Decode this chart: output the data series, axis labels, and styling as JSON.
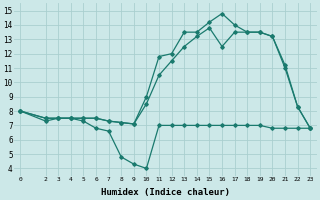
{
  "xlabel": "Humidex (Indice chaleur)",
  "background_color": "#cce8e8",
  "grid_color": "#aacfcf",
  "line_color": "#1a7a6e",
  "xlim": [
    -0.5,
    23.5
  ],
  "ylim": [
    3.5,
    15.5
  ],
  "xticks": [
    0,
    2,
    3,
    4,
    5,
    6,
    7,
    8,
    9,
    10,
    11,
    12,
    13,
    14,
    15,
    16,
    17,
    18,
    19,
    20,
    21,
    22,
    23
  ],
  "yticks": [
    4,
    5,
    6,
    7,
    8,
    9,
    10,
    11,
    12,
    13,
    14,
    15
  ],
  "line1_x": [
    0,
    2,
    3,
    4,
    5,
    6,
    7,
    8,
    9,
    10,
    11,
    12,
    13,
    14,
    15,
    16,
    17,
    18,
    19,
    20,
    21,
    22,
    23
  ],
  "line1_y": [
    8.0,
    7.3,
    7.5,
    7.5,
    7.3,
    6.8,
    6.6,
    4.8,
    4.3,
    4.0,
    7.0,
    7.0,
    7.0,
    7.0,
    7.0,
    7.0,
    7.0,
    7.0,
    7.0,
    6.8,
    6.8,
    6.8,
    6.8
  ],
  "line2_x": [
    0,
    2,
    3,
    4,
    5,
    6,
    7,
    8,
    9,
    10,
    11,
    12,
    13,
    14,
    15,
    16,
    17,
    18,
    19,
    20,
    21,
    22,
    23
  ],
  "line2_y": [
    8.0,
    7.5,
    7.5,
    7.5,
    7.5,
    7.5,
    7.3,
    7.2,
    7.1,
    9.0,
    11.8,
    12.0,
    13.5,
    13.5,
    14.2,
    14.8,
    14.0,
    13.5,
    13.5,
    13.2,
    11.0,
    8.3,
    6.8
  ],
  "line3_x": [
    0,
    2,
    3,
    4,
    5,
    6,
    7,
    8,
    9,
    10,
    11,
    12,
    13,
    14,
    15,
    16,
    17,
    18,
    19,
    20,
    21,
    22,
    23
  ],
  "line3_y": [
    8.0,
    7.5,
    7.5,
    7.5,
    7.5,
    7.5,
    7.3,
    7.2,
    7.1,
    8.5,
    10.5,
    11.5,
    12.5,
    13.2,
    13.8,
    12.5,
    13.5,
    13.5,
    13.5,
    13.2,
    11.2,
    8.3,
    6.8
  ]
}
